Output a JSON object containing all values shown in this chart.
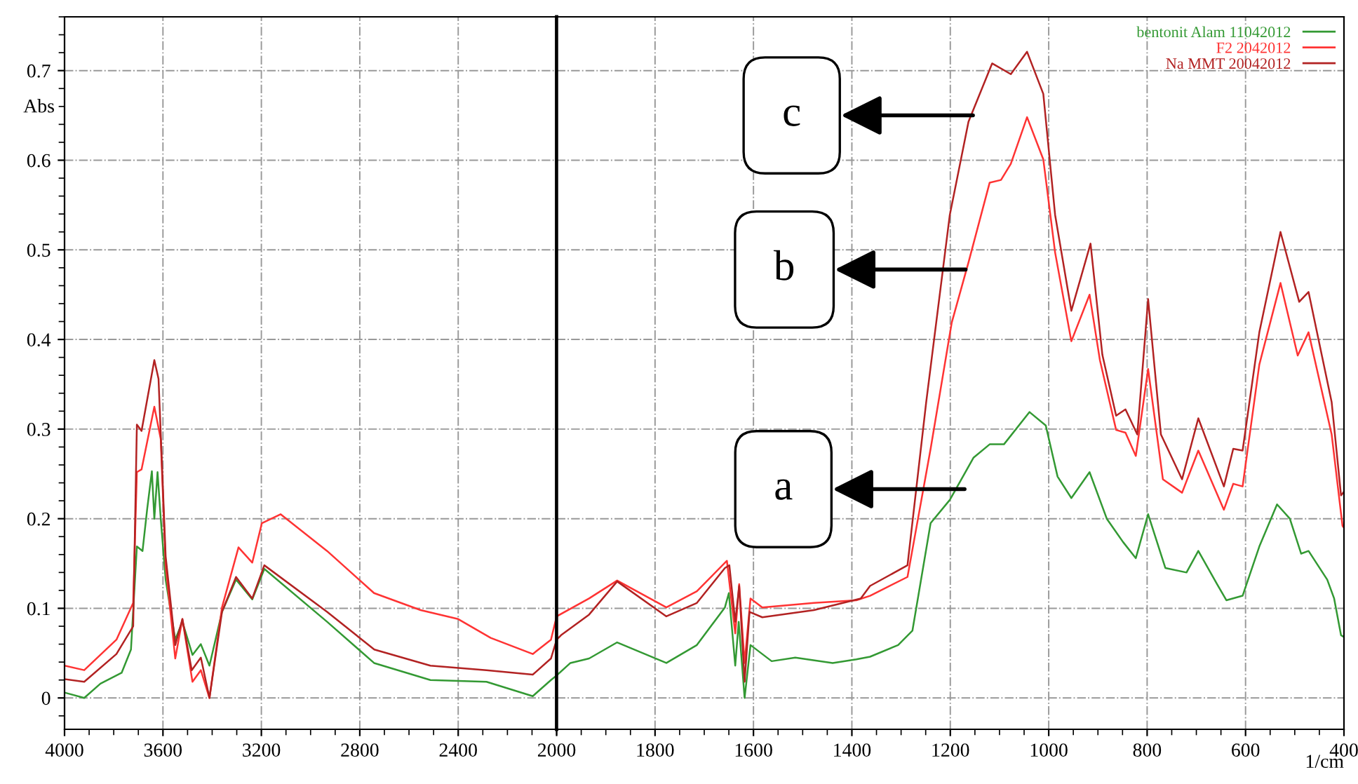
{
  "chart_data": [
    {
      "type": "line",
      "ylabel": "Abs",
      "xlim": [
        4000,
        2000
      ],
      "xticks": [
        4000,
        3600,
        3200,
        2800,
        2400
      ],
      "ylim": [
        -0.035,
        0.76
      ],
      "yticks": [
        0,
        0.1,
        0.2,
        0.3,
        0.4,
        0.5,
        0.6,
        0.7
      ],
      "grid": true,
      "line_style": "solid",
      "marker": "none",
      "series": [
        {
          "color": "#339933",
          "x": [
            4000,
            3920,
            3854,
            3768,
            3730,
            3706,
            3683,
            3664,
            3645,
            3635,
            3622,
            3609,
            3589,
            3550,
            3521,
            3480,
            3446,
            3411,
            3360,
            3303,
            3237,
            3188,
            2933,
            2742,
            2513,
            2285,
            2097,
            2023,
            2000
          ],
          "values": [
            0.006,
            0.0,
            0.016,
            0.028,
            0.054,
            0.169,
            0.164,
            0.211,
            0.253,
            0.2,
            0.252,
            0.2,
            0.132,
            0.065,
            0.085,
            0.048,
            0.06,
            0.036,
            0.096,
            0.132,
            0.11,
            0.144,
            0.085,
            0.039,
            0.02,
            0.018,
            0.002,
            0.02,
            0.025
          ]
        },
        {
          "color": "#ff3333",
          "x": [
            4000,
            3920,
            3789,
            3721,
            3706,
            3687,
            3635,
            3609,
            3589,
            3550,
            3521,
            3480,
            3446,
            3411,
            3360,
            3293,
            3237,
            3198,
            3122,
            2933,
            2742,
            2553,
            2400,
            2268,
            2097,
            2023,
            2000
          ],
          "values": [
            0.036,
            0.031,
            0.065,
            0.106,
            0.252,
            0.255,
            0.325,
            0.289,
            0.148,
            0.044,
            0.088,
            0.018,
            0.031,
            0.0,
            0.101,
            0.168,
            0.151,
            0.195,
            0.205,
            0.164,
            0.117,
            0.098,
            0.088,
            0.067,
            0.049,
            0.065,
            0.091
          ]
        },
        {
          "color": "#b22222",
          "x": [
            4000,
            3920,
            3789,
            3721,
            3706,
            3687,
            3635,
            3618,
            3589,
            3550,
            3521,
            3483,
            3446,
            3411,
            3360,
            3303,
            3237,
            3188,
            2933,
            2741,
            2513,
            2285,
            2097,
            2023,
            2000
          ],
          "values": [
            0.021,
            0.018,
            0.049,
            0.08,
            0.305,
            0.298,
            0.377,
            0.356,
            0.158,
            0.059,
            0.088,
            0.031,
            0.045,
            0.0,
            0.096,
            0.135,
            0.111,
            0.148,
            0.096,
            0.054,
            0.036,
            0.031,
            0.026,
            0.044,
            0.065
          ]
        }
      ]
    },
    {
      "type": "line",
      "xlabel": "1/cm",
      "xlim": [
        2000,
        400
      ],
      "xticks": [
        2000,
        1800,
        1600,
        1400,
        1200,
        1000,
        800,
        600,
        400
      ],
      "ylim": [
        -0.035,
        0.76
      ],
      "yticks": [
        0,
        0.1,
        0.2,
        0.3,
        0.4,
        0.5,
        0.6,
        0.7
      ],
      "tick_labels": "x",
      "grid": true,
      "legend": "top right",
      "line_style": "solid",
      "marker": "none",
      "annotations": [
        {
          "text": "c",
          "x": 1154,
          "y": 0.65
        },
        {
          "text": "b",
          "x": 1169,
          "y": 0.478
        },
        {
          "text": "a",
          "x": 1171,
          "y": 0.233
        }
      ],
      "series": [
        {
          "name": "bentonit Alam 11042012",
          "color": "#339933",
          "x": [
            2000,
            1972,
            1934,
            1877,
            1777,
            1715,
            1658,
            1650,
            1637,
            1630,
            1618,
            1606,
            1563,
            1515,
            1439,
            1391,
            1363,
            1306,
            1277,
            1240,
            1201,
            1153,
            1120,
            1091,
            1039,
            1006,
            982,
            954,
            917,
            882,
            849,
            823,
            798,
            763,
            720,
            696,
            658,
            639,
            606,
            572,
            536,
            510,
            487,
            472,
            434,
            420,
            406,
            400
          ],
          "values": [
            0.025,
            0.039,
            0.044,
            0.062,
            0.039,
            0.059,
            0.101,
            0.117,
            0.036,
            0.085,
            0.0,
            0.059,
            0.041,
            0.045,
            0.039,
            0.043,
            0.046,
            0.059,
            0.075,
            0.195,
            0.221,
            0.268,
            0.283,
            0.283,
            0.319,
            0.304,
            0.247,
            0.223,
            0.252,
            0.2,
            0.174,
            0.156,
            0.205,
            0.145,
            0.14,
            0.164,
            0.127,
            0.109,
            0.114,
            0.169,
            0.216,
            0.2,
            0.161,
            0.164,
            0.132,
            0.111,
            0.07,
            0.068
          ]
        },
        {
          "name": "F2 2042012",
          "color": "#ff3333",
          "x": [
            2000,
            1934,
            1877,
            1777,
            1715,
            1654,
            1637,
            1629,
            1618,
            1606,
            1582,
            1477,
            1391,
            1363,
            1287,
            1240,
            1197,
            1163,
            1120,
            1097,
            1077,
            1044,
            1011,
            987,
            954,
            917,
            896,
            863,
            844,
            823,
            798,
            768,
            729,
            696,
            644,
            625,
            606,
            572,
            529,
            494,
            472,
            425,
            403,
            400
          ],
          "values": [
            0.091,
            0.111,
            0.131,
            0.101,
            0.119,
            0.153,
            0.072,
            0.127,
            0.039,
            0.111,
            0.101,
            0.106,
            0.109,
            0.114,
            0.135,
            0.278,
            0.419,
            0.486,
            0.575,
            0.578,
            0.596,
            0.648,
            0.601,
            0.497,
            0.398,
            0.45,
            0.377,
            0.299,
            0.296,
            0.27,
            0.367,
            0.244,
            0.229,
            0.276,
            0.21,
            0.239,
            0.236,
            0.372,
            0.463,
            0.382,
            0.408,
            0.294,
            0.192,
            0.19
          ]
        },
        {
          "name": "Na MMT 20042012",
          "color": "#b22222",
          "x": [
            2000,
            1991,
            1934,
            1877,
            1777,
            1715,
            1658,
            1649,
            1637,
            1629,
            1618,
            1608,
            1582,
            1477,
            1382,
            1363,
            1287,
            1249,
            1201,
            1163,
            1115,
            1077,
            1044,
            1011,
            987,
            954,
            915,
            891,
            863,
            844,
            820,
            798,
            772,
            729,
            696,
            644,
            625,
            606,
            572,
            529,
            491,
            472,
            425,
            406,
            400
          ],
          "values": [
            0.065,
            0.07,
            0.093,
            0.13,
            0.091,
            0.106,
            0.145,
            0.148,
            0.085,
            0.125,
            0.018,
            0.096,
            0.09,
            0.098,
            0.111,
            0.125,
            0.148,
            0.33,
            0.539,
            0.643,
            0.708,
            0.696,
            0.721,
            0.674,
            0.539,
            0.432,
            0.507,
            0.383,
            0.315,
            0.322,
            0.294,
            0.445,
            0.294,
            0.244,
            0.312,
            0.236,
            0.278,
            0.276,
            0.408,
            0.52,
            0.442,
            0.453,
            0.33,
            0.226,
            0.23
          ]
        }
      ]
    }
  ]
}
